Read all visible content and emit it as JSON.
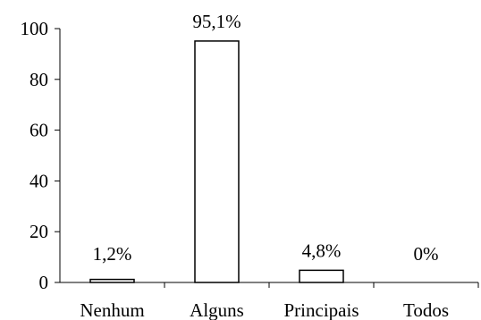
{
  "chart_data": {
    "type": "bar",
    "categories": [
      "Nenhum",
      "Alguns",
      "Principais",
      "Todos"
    ],
    "values": [
      1.2,
      95.1,
      4.8,
      0
    ],
    "data_labels": [
      "1,2%",
      "95,1%",
      "4,8%",
      "0%"
    ],
    "ylim": [
      0,
      100
    ],
    "yticks": [
      0,
      20,
      40,
      60,
      80,
      100
    ],
    "ytick_labels": [
      "0",
      "20",
      "40",
      "60",
      "80",
      "100"
    ],
    "grid": false,
    "legend": "none",
    "bar_fill": "#ffffff",
    "bar_stroke": "#000000"
  }
}
